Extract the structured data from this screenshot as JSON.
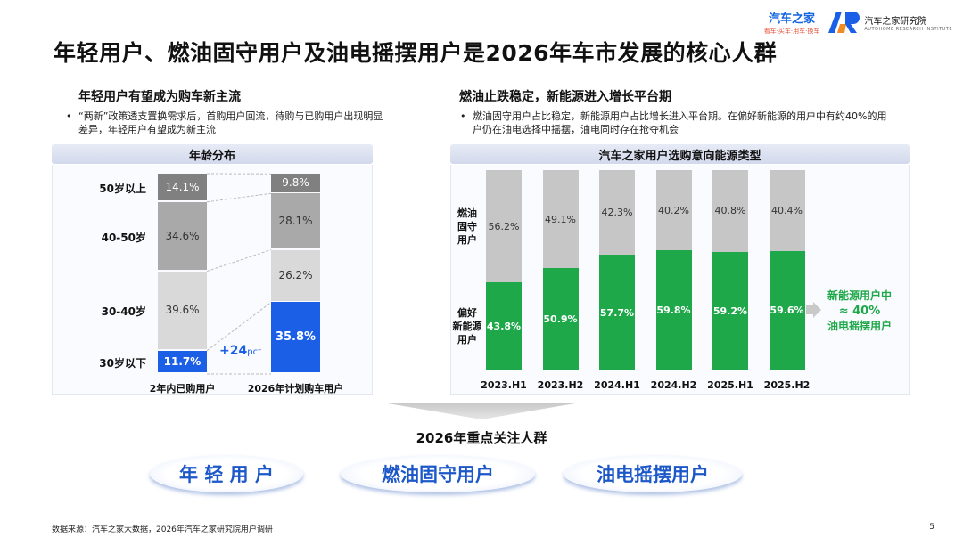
{
  "page": {
    "title": "年轻用户、燃油固守用户及油电摇摆用户是2026年车市发展的核心人群",
    "page_number": "5",
    "source": "数据来源：汽车之家大数据，2026年汽车之家研究院用户调研"
  },
  "brand": {
    "name_a": "汽车之家",
    "slogan_a": "看车·买车·用车·换车",
    "name_b": "汽车之家研究院",
    "sub_b": "AUTOHOME RESEARCH INSTITUTE"
  },
  "left": {
    "heading": "年轻用户有望成为购车新主流",
    "bullet": "“两新”政策透支置换需求后，首购用户回流，待购与已购用户出现明显差异，年轻用户有望成为新主流",
    "bullet_mark": "•"
  },
  "right": {
    "heading": "燃油止跌稳定，新能源进入增长平台期",
    "bullet": "燃油固守用户占比稳定，新能源用户占比增长进入平台期。在偏好新能源的用户中有约40%的用户仍在油电选择中摇摆，油电同时存在抢夺机会",
    "bullet_mark": "•",
    "callout_lines": [
      "新能源用户中",
      "≈ 40%",
      "油电摇摆用户"
    ]
  },
  "colors": {
    "blue": "#1a5fe6",
    "dark_gray": "#808080",
    "mid_gray": "#a9a9a9",
    "light_gray": "#d9d9d9",
    "green": "#1fa84a",
    "bar_gray": "#c6c6c6"
  },
  "chart_data": [
    {
      "type": "bar",
      "stacked": true,
      "title": "年龄分布",
      "categories": [
        "2年内已购用户",
        "2026年计划购车用户"
      ],
      "series": [
        {
          "name": "30岁以下",
          "values": [
            11.7,
            35.8
          ]
        },
        {
          "name": "30-40岁",
          "values": [
            39.6,
            26.2
          ]
        },
        {
          "name": "40-50岁",
          "values": [
            34.6,
            28.1
          ]
        },
        {
          "name": "50岁以上",
          "values": [
            14.1,
            9.8
          ]
        }
      ],
      "value_labels": [
        [
          "11.7%",
          "39.6%",
          "34.6%",
          "14.1%"
        ],
        [
          "35.8%",
          "26.2%",
          "28.1%",
          "9.8%"
        ]
      ],
      "annotation": {
        "main": "+24",
        "unit": "pct"
      },
      "ylim": [
        0,
        100
      ]
    },
    {
      "type": "bar",
      "stacked": true,
      "title": "汽车之家用户选购意向能源类型",
      "categories": [
        "2023.H1",
        "2023.H2",
        "2024.H1",
        "2024.H2",
        "2025.H1",
        "2025.H2"
      ],
      "series": [
        {
          "name": "偏好新能源用户",
          "values": [
            43.8,
            50.9,
            57.7,
            59.8,
            59.2,
            59.6
          ]
        },
        {
          "name": "燃油固守用户",
          "values": [
            56.2,
            49.1,
            42.3,
            40.2,
            40.8,
            40.4
          ]
        }
      ],
      "series_labels_display": [
        "偏好\n新能源\n用户",
        "燃油\n固守\n用户"
      ],
      "ylim": [
        0,
        100
      ]
    }
  ],
  "focus": {
    "title": "2026年重点关注人群",
    "groups": [
      "年 轻 用 户",
      "燃油固守用户",
      "油电摇摆用户"
    ]
  }
}
